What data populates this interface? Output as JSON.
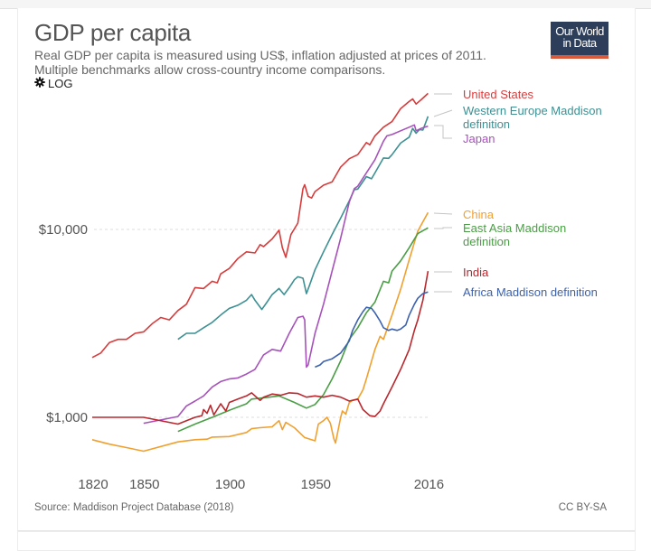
{
  "header": {
    "title": "GDP per capita",
    "subtitle_line1": "Real GDP per capita is measured using US$, inflation adjusted at prices of 2011.",
    "subtitle_line2": "Multiple benchmarks allow cross-country income comparisons.",
    "log_toggle_label": "LOG",
    "logo_line1": "Our World",
    "logo_line2": "in Data"
  },
  "footer": {
    "source": "Source: Maddison Project Database (2018)",
    "license": "CC BY-SA"
  },
  "colors": {
    "logo_bg": "#2d3e5a",
    "logo_accent": "#d85a3b"
  },
  "chart_data": {
    "type": "line",
    "title": "GDP per capita",
    "xlabel": "",
    "ylabel": "",
    "yscale": "log",
    "xlim": [
      1820,
      2016
    ],
    "ylim": [
      600,
      60000
    ],
    "x_ticks": [
      1820,
      1850,
      1900,
      1950,
      2016
    ],
    "x_tick_labels": [
      "1820",
      "1850",
      "1900",
      "1950",
      "2016"
    ],
    "y_ticks": [
      1000,
      10000
    ],
    "y_tick_labels": [
      "$1,000",
      "$10,000"
    ],
    "grid": "horizontal-dashed",
    "legend": "right-inline",
    "series": [
      {
        "name": "United States",
        "legend_lines": [
          "United States"
        ],
        "color": "#d73c3c",
        "points": [
          [
            1820,
            2080
          ],
          [
            1825,
            2200
          ],
          [
            1830,
            2500
          ],
          [
            1835,
            2600
          ],
          [
            1840,
            2600
          ],
          [
            1845,
            2800
          ],
          [
            1850,
            2850
          ],
          [
            1855,
            3150
          ],
          [
            1860,
            3400
          ],
          [
            1865,
            3300
          ],
          [
            1870,
            3700
          ],
          [
            1875,
            4000
          ],
          [
            1880,
            4900
          ],
          [
            1885,
            4850
          ],
          [
            1890,
            5300
          ],
          [
            1893,
            5200
          ],
          [
            1895,
            5800
          ],
          [
            1900,
            6200
          ],
          [
            1905,
            7000
          ],
          [
            1910,
            7600
          ],
          [
            1915,
            7500
          ],
          [
            1918,
            8300
          ],
          [
            1920,
            8100
          ],
          [
            1925,
            8900
          ],
          [
            1929,
            9900
          ],
          [
            1931,
            8000
          ],
          [
            1933,
            7100
          ],
          [
            1936,
            9400
          ],
          [
            1940,
            10800
          ],
          [
            1943,
            16500
          ],
          [
            1944,
            17300
          ],
          [
            1946,
            15000
          ],
          [
            1948,
            14700
          ],
          [
            1950,
            15900
          ],
          [
            1955,
            17200
          ],
          [
            1960,
            17900
          ],
          [
            1965,
            21500
          ],
          [
            1970,
            23800
          ],
          [
            1975,
            25000
          ],
          [
            1980,
            29000
          ],
          [
            1982,
            28200
          ],
          [
            1985,
            31500
          ],
          [
            1990,
            35000
          ],
          [
            1995,
            37500
          ],
          [
            2000,
            44000
          ],
          [
            2005,
            48000
          ],
          [
            2007,
            49500
          ],
          [
            2009,
            46500
          ],
          [
            2012,
            49000
          ],
          [
            2016,
            53000
          ]
        ]
      },
      {
        "name": "Western Europe Maddison definition",
        "legend_lines": [
          "Western Europe Maddison",
          "definition"
        ],
        "color": "#3d9093",
        "points": [
          [
            1870,
            2600
          ],
          [
            1875,
            2800
          ],
          [
            1880,
            2800
          ],
          [
            1885,
            3000
          ],
          [
            1890,
            3200
          ],
          [
            1895,
            3500
          ],
          [
            1900,
            3800
          ],
          [
            1905,
            3950
          ],
          [
            1910,
            4200
          ],
          [
            1913,
            4500
          ],
          [
            1915,
            4200
          ],
          [
            1919,
            3750
          ],
          [
            1922,
            4100
          ],
          [
            1925,
            4500
          ],
          [
            1929,
            4850
          ],
          [
            1932,
            4500
          ],
          [
            1935,
            4900
          ],
          [
            1938,
            5400
          ],
          [
            1940,
            5600
          ],
          [
            1943,
            5500
          ],
          [
            1945,
            4550
          ],
          [
            1947,
            5100
          ],
          [
            1950,
            6100
          ],
          [
            1955,
            7600
          ],
          [
            1960,
            9400
          ],
          [
            1965,
            11500
          ],
          [
            1970,
            14200
          ],
          [
            1973,
            16300
          ],
          [
            1975,
            16400
          ],
          [
            1980,
            19100
          ],
          [
            1983,
            18600
          ],
          [
            1985,
            20000
          ],
          [
            1990,
            24000
          ],
          [
            1993,
            23900
          ],
          [
            1995,
            25000
          ],
          [
            2000,
            28800
          ],
          [
            2005,
            31000
          ],
          [
            2007,
            34500
          ],
          [
            2009,
            32500
          ],
          [
            2011,
            34000
          ],
          [
            2013,
            33800
          ],
          [
            2016,
            40000
          ]
        ]
      },
      {
        "name": "Japan",
        "legend_lines": [
          "Japan"
        ],
        "color": "#a652ba",
        "points": [
          [
            1850,
            930
          ],
          [
            1870,
            1010
          ],
          [
            1875,
            1150
          ],
          [
            1880,
            1220
          ],
          [
            1885,
            1300
          ],
          [
            1890,
            1450
          ],
          [
            1895,
            1550
          ],
          [
            1900,
            1600
          ],
          [
            1905,
            1620
          ],
          [
            1910,
            1700
          ],
          [
            1915,
            1800
          ],
          [
            1920,
            2150
          ],
          [
            1925,
            2300
          ],
          [
            1930,
            2250
          ],
          [
            1935,
            2800
          ],
          [
            1940,
            3400
          ],
          [
            1943,
            3450
          ],
          [
            1944,
            3300
          ],
          [
            1945,
            1850
          ],
          [
            1946,
            1900
          ],
          [
            1950,
            2800
          ],
          [
            1955,
            4000
          ],
          [
            1960,
            6000
          ],
          [
            1965,
            9000
          ],
          [
            1970,
            14000
          ],
          [
            1973,
            16500
          ],
          [
            1975,
            17000
          ],
          [
            1980,
            20000
          ],
          [
            1985,
            23500
          ],
          [
            1990,
            29500
          ],
          [
            1992,
            31500
          ],
          [
            1995,
            32000
          ],
          [
            2000,
            33500
          ],
          [
            2005,
            35000
          ],
          [
            2008,
            36000
          ],
          [
            2009,
            33500
          ],
          [
            2012,
            34500
          ],
          [
            2016,
            35500
          ]
        ]
      },
      {
        "name": "China",
        "legend_lines": [
          "China"
        ],
        "color": "#f0a02e",
        "points": [
          [
            1820,
            760
          ],
          [
            1830,
            720
          ],
          [
            1840,
            690
          ],
          [
            1850,
            660
          ],
          [
            1870,
            740
          ],
          [
            1880,
            760
          ],
          [
            1887,
            765
          ],
          [
            1890,
            785
          ],
          [
            1900,
            790
          ],
          [
            1910,
            830
          ],
          [
            1913,
            870
          ],
          [
            1918,
            880
          ],
          [
            1925,
            890
          ],
          [
            1929,
            960
          ],
          [
            1931,
            860
          ],
          [
            1933,
            940
          ],
          [
            1938,
            880
          ],
          [
            1944,
            780
          ],
          [
            1950,
            750
          ],
          [
            1952,
            920
          ],
          [
            1955,
            960
          ],
          [
            1957,
            1000
          ],
          [
            1959,
            930
          ],
          [
            1961,
            770
          ],
          [
            1962,
            730
          ],
          [
            1965,
            1000
          ],
          [
            1966,
            1080
          ],
          [
            1968,
            1040
          ],
          [
            1970,
            1200
          ],
          [
            1972,
            1230
          ],
          [
            1975,
            1250
          ],
          [
            1978,
            1400
          ],
          [
            1980,
            1600
          ],
          [
            1985,
            2300
          ],
          [
            1988,
            2700
          ],
          [
            1990,
            2600
          ],
          [
            1995,
            3500
          ],
          [
            2000,
            4800
          ],
          [
            2005,
            6900
          ],
          [
            2010,
            9800
          ],
          [
            2016,
            12300
          ]
        ]
      },
      {
        "name": "East Asia Maddison definition",
        "legend_lines": [
          "East Asia Maddison",
          "definition"
        ],
        "color": "#4a9e45",
        "points": [
          [
            1870,
            840
          ],
          [
            1880,
            920
          ],
          [
            1890,
            1000
          ],
          [
            1900,
            1090
          ],
          [
            1910,
            1180
          ],
          [
            1913,
            1250
          ],
          [
            1920,
            1270
          ],
          [
            1929,
            1300
          ],
          [
            1938,
            1200
          ],
          [
            1945,
            1120
          ],
          [
            1950,
            1170
          ],
          [
            1955,
            1320
          ],
          [
            1960,
            1600
          ],
          [
            1965,
            2000
          ],
          [
            1970,
            2600
          ],
          [
            1975,
            3000
          ],
          [
            1980,
            3600
          ],
          [
            1985,
            4100
          ],
          [
            1990,
            5300
          ],
          [
            1993,
            5200
          ],
          [
            1995,
            6000
          ],
          [
            2000,
            6800
          ],
          [
            2005,
            8000
          ],
          [
            2010,
            9500
          ],
          [
            2016,
            10200
          ]
        ]
      },
      {
        "name": "India",
        "legend_lines": [
          "India"
        ],
        "color": "#b8282e",
        "points": [
          [
            1820,
            1000
          ],
          [
            1850,
            1000
          ],
          [
            1870,
            920
          ],
          [
            1880,
            1000
          ],
          [
            1884,
            1020
          ],
          [
            1885,
            1100
          ],
          [
            1887,
            1050
          ],
          [
            1889,
            1160
          ],
          [
            1891,
            1030
          ],
          [
            1895,
            1180
          ],
          [
            1898,
            1080
          ],
          [
            1900,
            1200
          ],
          [
            1905,
            1250
          ],
          [
            1910,
            1300
          ],
          [
            1913,
            1350
          ],
          [
            1918,
            1230
          ],
          [
            1920,
            1280
          ],
          [
            1925,
            1330
          ],
          [
            1930,
            1310
          ],
          [
            1935,
            1350
          ],
          [
            1940,
            1340
          ],
          [
            1945,
            1280
          ],
          [
            1950,
            1300
          ],
          [
            1955,
            1280
          ],
          [
            1960,
            1310
          ],
          [
            1965,
            1280
          ],
          [
            1970,
            1220
          ],
          [
            1975,
            1250
          ],
          [
            1978,
            1100
          ],
          [
            1982,
            1020
          ],
          [
            1985,
            1010
          ],
          [
            1988,
            1080
          ],
          [
            1990,
            1180
          ],
          [
            1995,
            1450
          ],
          [
            2000,
            1800
          ],
          [
            2005,
            2300
          ],
          [
            2008,
            2900
          ],
          [
            2010,
            3300
          ],
          [
            2013,
            4200
          ],
          [
            2016,
            6000
          ]
        ]
      },
      {
        "name": "Africa Maddison definition",
        "legend_lines": [
          "Africa Maddison definition"
        ],
        "color": "#3b61b0",
        "points": [
          [
            1950,
            1850
          ],
          [
            1953,
            1900
          ],
          [
            1955,
            1980
          ],
          [
            1960,
            2050
          ],
          [
            1965,
            2200
          ],
          [
            1968,
            2400
          ],
          [
            1970,
            2550
          ],
          [
            1972,
            2900
          ],
          [
            1975,
            3300
          ],
          [
            1978,
            3650
          ],
          [
            1980,
            3850
          ],
          [
            1983,
            3800
          ],
          [
            1985,
            3600
          ],
          [
            1988,
            3250
          ],
          [
            1990,
            3000
          ],
          [
            1993,
            2900
          ],
          [
            1995,
            2950
          ],
          [
            1998,
            2900
          ],
          [
            2000,
            2950
          ],
          [
            2003,
            3100
          ],
          [
            2005,
            3500
          ],
          [
            2008,
            4000
          ],
          [
            2010,
            4300
          ],
          [
            2013,
            4550
          ],
          [
            2016,
            4650
          ]
        ]
      }
    ]
  }
}
